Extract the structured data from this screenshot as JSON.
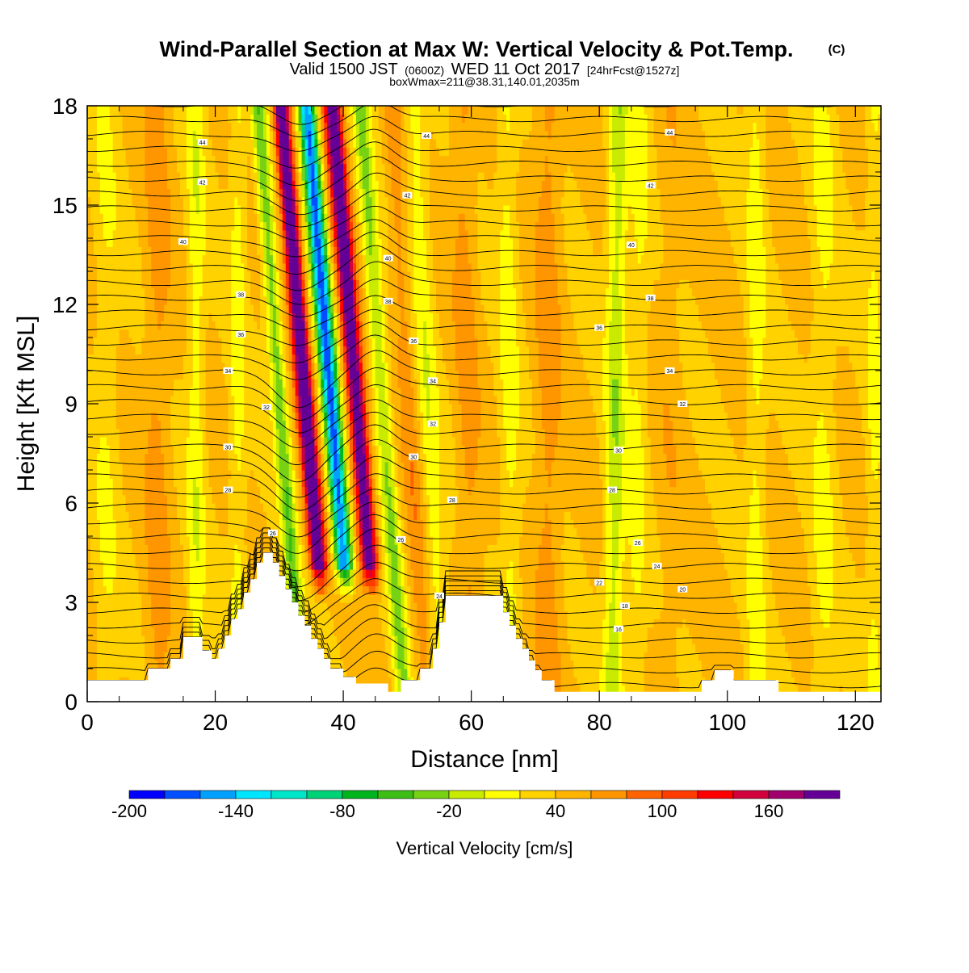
{
  "chart_data": {
    "type": "heatmap",
    "title": "Wind-Parallel Section at Max W: Vertical Velocity & Pot.Temp.",
    "copyright_mark": "(C)",
    "subtitle_pre": "Valid 1500 JST",
    "subtitle_utc": "(0600Z)",
    "subtitle_date": "WED 11 Oct 2017",
    "subtitle_fcst": "[24hrFcst@1527z]",
    "subtitle2": "boxWmax=211@38.31,140.01,2035m",
    "xlabel": "Distance [nm]",
    "ylabel": "Height [Kft MSL]",
    "xlim": [
      0,
      124
    ],
    "ylim": [
      0,
      18
    ],
    "x_ticks": [
      "0",
      "20",
      "40",
      "60",
      "80",
      "100",
      "120"
    ],
    "y_ticks": [
      "0",
      "3",
      "6",
      "9",
      "12",
      "15",
      "18"
    ],
    "colorbar": {
      "label": "Vertical Velocity [cm/s]",
      "tick_labels": [
        "-200",
        "-140",
        "-80",
        "-20",
        "40",
        "100",
        "160"
      ],
      "colors": [
        "#0000ff",
        "#0050ff",
        "#00a0ff",
        "#00e6ff",
        "#00e6c8",
        "#00d278",
        "#00b41e",
        "#3cbe14",
        "#78d214",
        "#c8eb00",
        "#ffff00",
        "#ffd200",
        "#ffb400",
        "#ff9600",
        "#ff6400",
        "#ff3c00",
        "#ff0000",
        "#d2003c",
        "#a0006e",
        "#640096"
      ]
    },
    "theta_contour_labels": [
      {
        "text": "44",
        "x": 18,
        "y": 16.9
      },
      {
        "text": "42",
        "x": 18,
        "y": 15.7
      },
      {
        "text": "40",
        "x": 15,
        "y": 13.9
      },
      {
        "text": "38",
        "x": 24,
        "y": 12.3
      },
      {
        "text": "36",
        "x": 24,
        "y": 11.1
      },
      {
        "text": "34",
        "x": 22,
        "y": 10.0
      },
      {
        "text": "32",
        "x": 28,
        "y": 8.9
      },
      {
        "text": "30",
        "x": 22,
        "y": 7.7
      },
      {
        "text": "28",
        "x": 22,
        "y": 6.4
      },
      {
        "text": "26",
        "x": 29,
        "y": 5.1
      },
      {
        "text": "44",
        "x": 53,
        "y": 17.1
      },
      {
        "text": "42",
        "x": 50,
        "y": 15.3
      },
      {
        "text": "40",
        "x": 47,
        "y": 13.4
      },
      {
        "text": "38",
        "x": 47,
        "y": 12.1
      },
      {
        "text": "36",
        "x": 51,
        "y": 10.9
      },
      {
        "text": "34",
        "x": 54,
        "y": 9.7
      },
      {
        "text": "32",
        "x": 54,
        "y": 8.4
      },
      {
        "text": "30",
        "x": 51,
        "y": 7.4
      },
      {
        "text": "28",
        "x": 57,
        "y": 6.1
      },
      {
        "text": "26",
        "x": 49,
        "y": 4.9
      },
      {
        "text": "24",
        "x": 55,
        "y": 3.2
      },
      {
        "text": "44",
        "x": 91,
        "y": 17.2
      },
      {
        "text": "42",
        "x": 88,
        "y": 15.6
      },
      {
        "text": "40",
        "x": 85,
        "y": 13.8
      },
      {
        "text": "38",
        "x": 88,
        "y": 12.2
      },
      {
        "text": "36",
        "x": 80,
        "y": 11.3
      },
      {
        "text": "34",
        "x": 91,
        "y": 10.0
      },
      {
        "text": "32",
        "x": 93,
        "y": 9.0
      },
      {
        "text": "30",
        "x": 83,
        "y": 7.6
      },
      {
        "text": "28",
        "x": 82,
        "y": 6.4
      },
      {
        "text": "26",
        "x": 86,
        "y": 4.8
      },
      {
        "text": "24",
        "x": 89,
        "y": 4.1
      },
      {
        "text": "20",
        "x": 93,
        "y": 3.4
      },
      {
        "text": "22",
        "x": 80,
        "y": 3.6
      },
      {
        "text": "18",
        "x": 84,
        "y": 2.9
      },
      {
        "text": "16",
        "x": 83,
        "y": 2.2
      }
    ]
  }
}
